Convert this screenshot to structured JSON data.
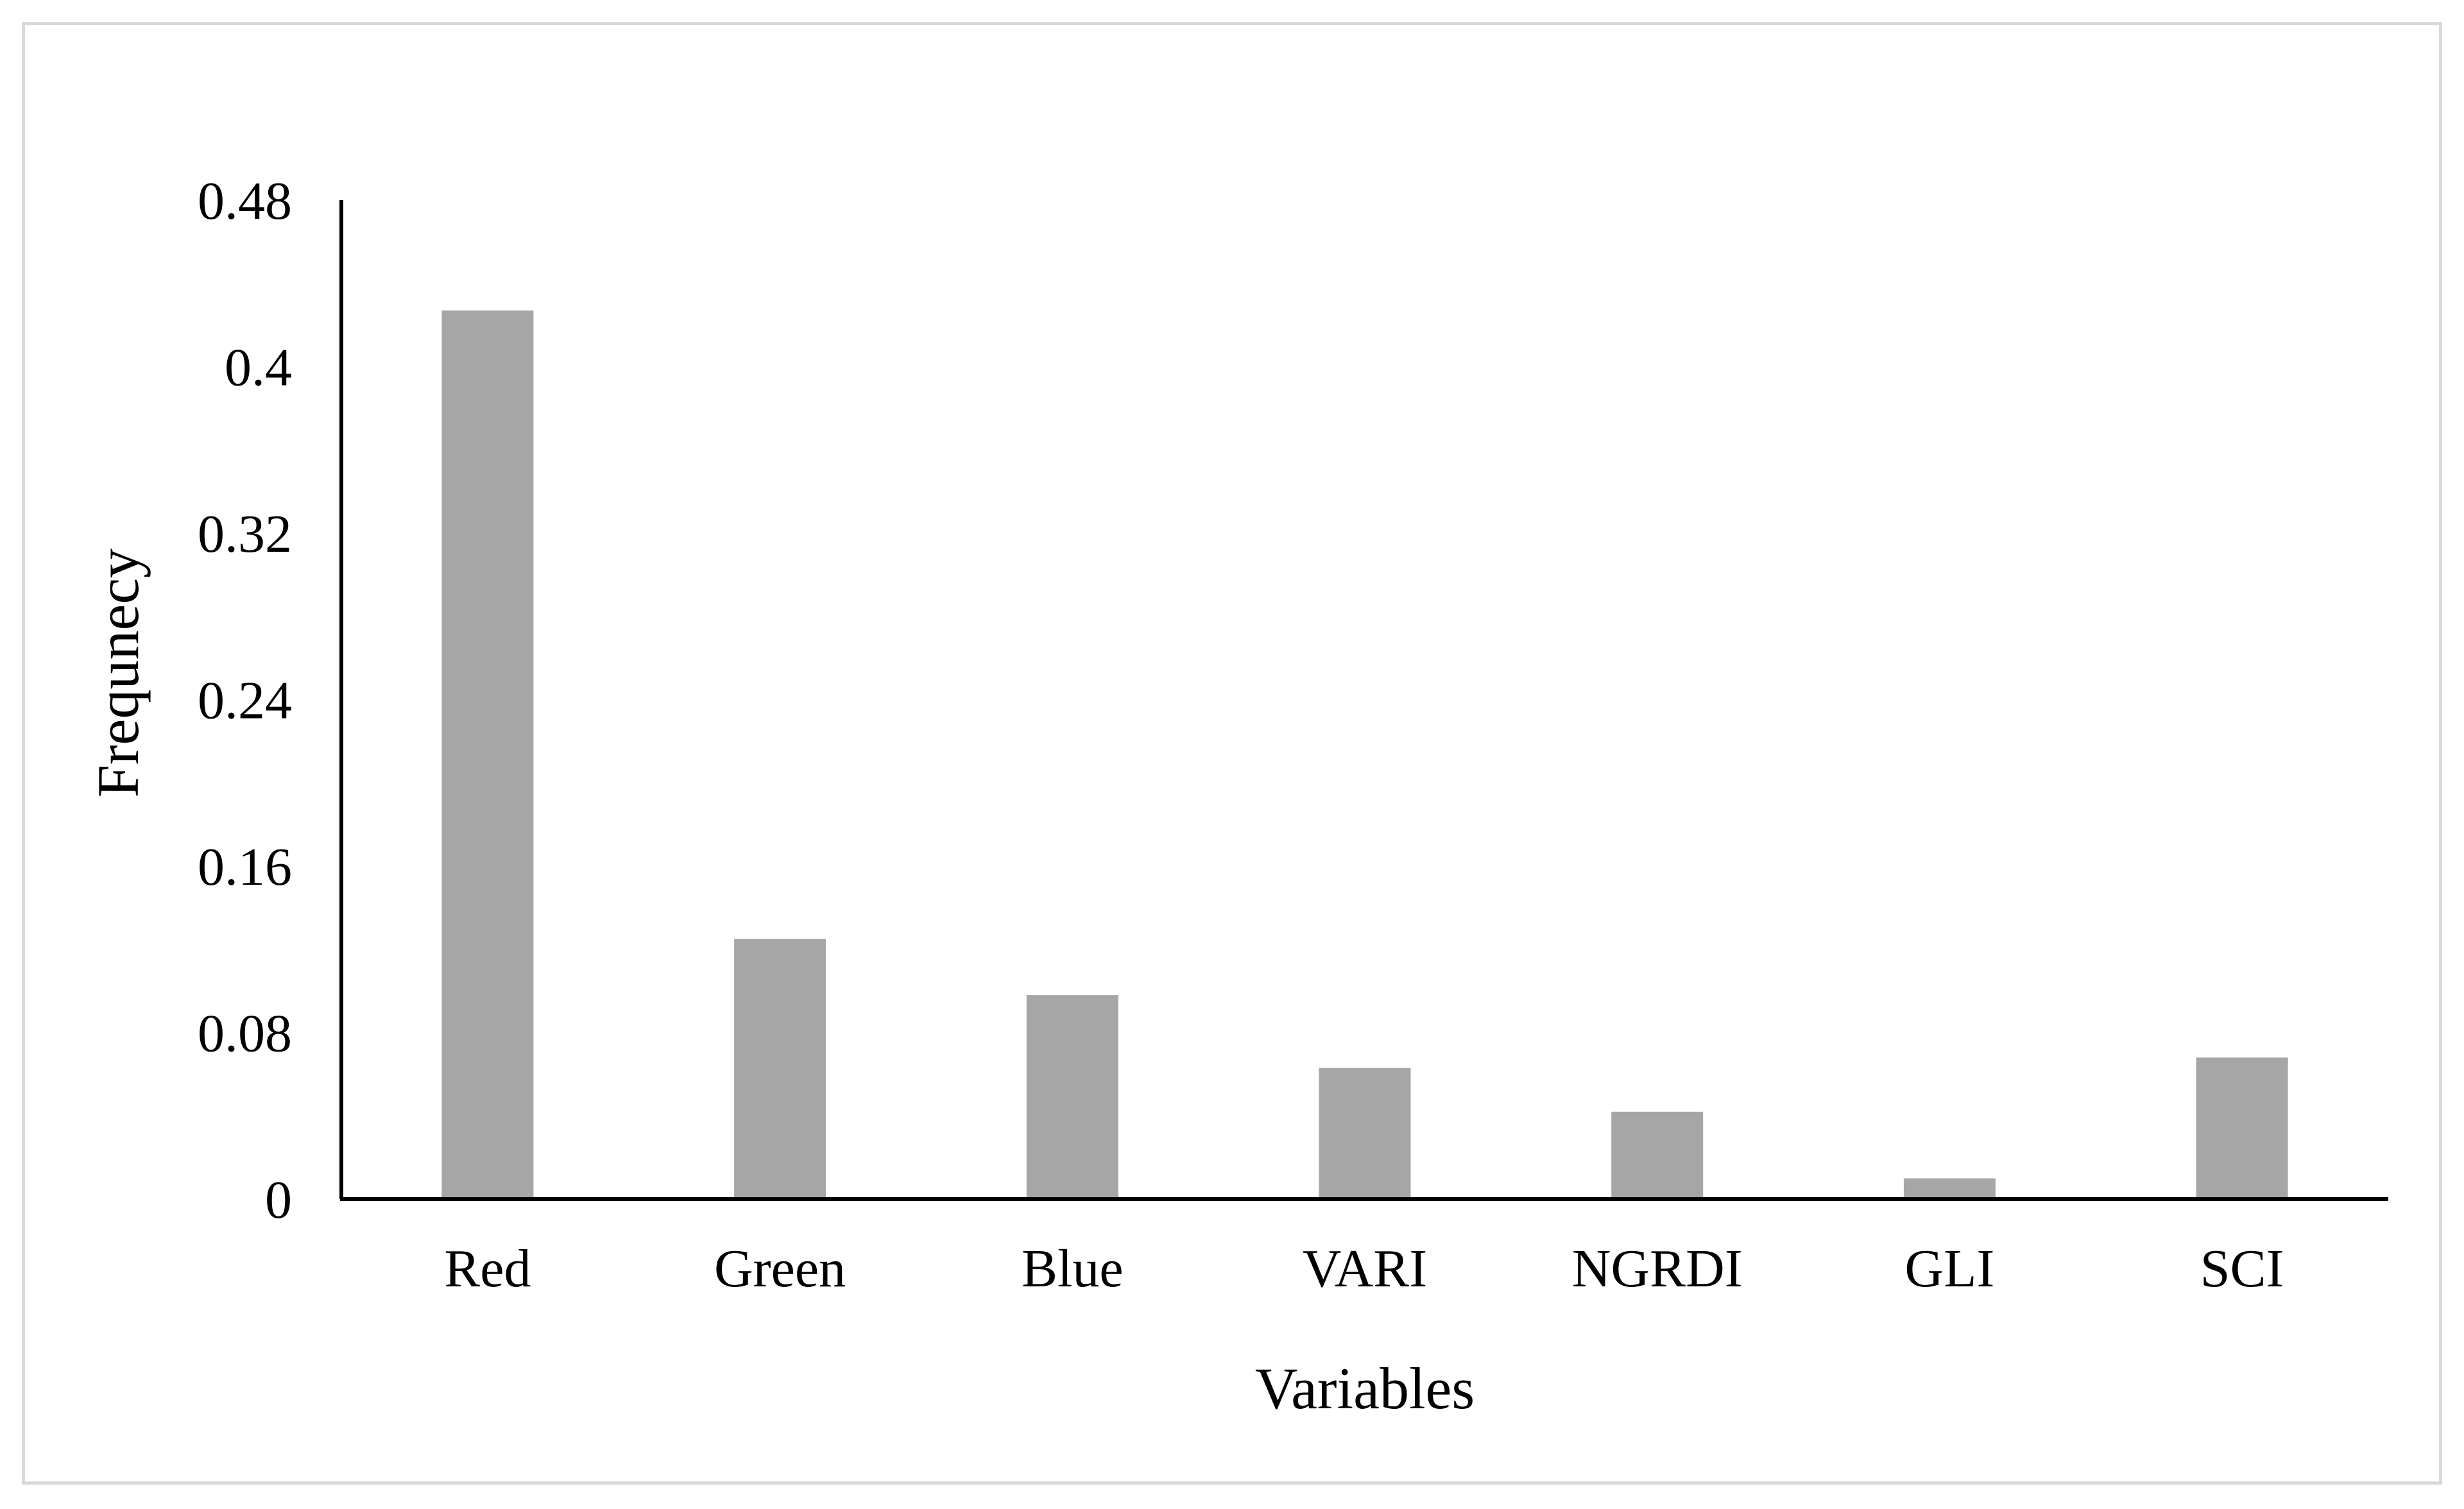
{
  "chart_data": {
    "type": "bar",
    "title": "",
    "xlabel": "Variables",
    "ylabel": "Frequnecy",
    "categories": [
      "Red",
      "Green",
      "Blue",
      "VARI",
      "NGRDI",
      "GLI",
      "SCI"
    ],
    "values": [
      0.427,
      0.125,
      0.098,
      0.063,
      0.042,
      0.01,
      0.068
    ],
    "ylim": [
      0,
      0.48
    ],
    "yticks": [
      0,
      0.08,
      0.16,
      0.24,
      0.32,
      0.4,
      0.48
    ],
    "ytick_labels": [
      "0",
      "0.08",
      "0.16",
      "0.24",
      "0.32",
      "0.4",
      "0.48"
    ],
    "grid": false,
    "legend": "none",
    "colors": {
      "bar": "#a6a6a6",
      "axis": "#000000",
      "frame": "#d9d9d9"
    }
  }
}
